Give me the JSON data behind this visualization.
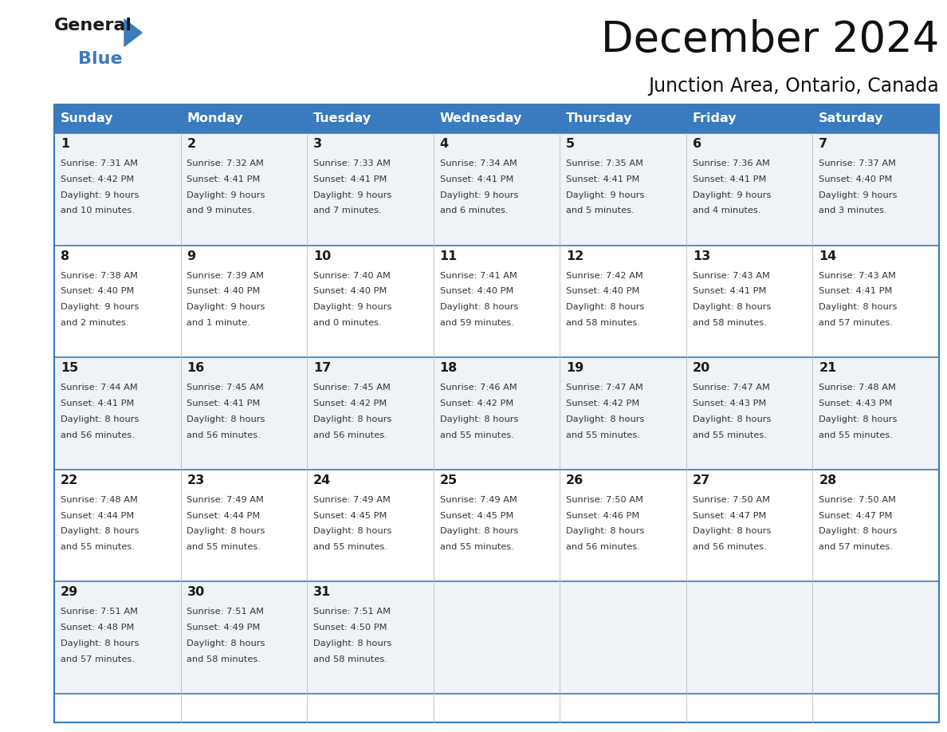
{
  "title": "December 2024",
  "subtitle": "Junction Area, Ontario, Canada",
  "header_color": "#3a7abf",
  "header_text_color": "#ffffff",
  "border_color": "#3a7abf",
  "day_headers": [
    "Sunday",
    "Monday",
    "Tuesday",
    "Wednesday",
    "Thursday",
    "Friday",
    "Saturday"
  ],
  "days": [
    {
      "day": 1,
      "col": 0,
      "row": 0,
      "sunrise": "7:31 AM",
      "sunset": "4:42 PM",
      "daylight": "9 hours",
      "daylight2": "and 10 minutes."
    },
    {
      "day": 2,
      "col": 1,
      "row": 0,
      "sunrise": "7:32 AM",
      "sunset": "4:41 PM",
      "daylight": "9 hours",
      "daylight2": "and 9 minutes."
    },
    {
      "day": 3,
      "col": 2,
      "row": 0,
      "sunrise": "7:33 AM",
      "sunset": "4:41 PM",
      "daylight": "9 hours",
      "daylight2": "and 7 minutes."
    },
    {
      "day": 4,
      "col": 3,
      "row": 0,
      "sunrise": "7:34 AM",
      "sunset": "4:41 PM",
      "daylight": "9 hours",
      "daylight2": "and 6 minutes."
    },
    {
      "day": 5,
      "col": 4,
      "row": 0,
      "sunrise": "7:35 AM",
      "sunset": "4:41 PM",
      "daylight": "9 hours",
      "daylight2": "and 5 minutes."
    },
    {
      "day": 6,
      "col": 5,
      "row": 0,
      "sunrise": "7:36 AM",
      "sunset": "4:41 PM",
      "daylight": "9 hours",
      "daylight2": "and 4 minutes."
    },
    {
      "day": 7,
      "col": 6,
      "row": 0,
      "sunrise": "7:37 AM",
      "sunset": "4:40 PM",
      "daylight": "9 hours",
      "daylight2": "and 3 minutes."
    },
    {
      "day": 8,
      "col": 0,
      "row": 1,
      "sunrise": "7:38 AM",
      "sunset": "4:40 PM",
      "daylight": "9 hours",
      "daylight2": "and 2 minutes."
    },
    {
      "day": 9,
      "col": 1,
      "row": 1,
      "sunrise": "7:39 AM",
      "sunset": "4:40 PM",
      "daylight": "9 hours",
      "daylight2": "and 1 minute."
    },
    {
      "day": 10,
      "col": 2,
      "row": 1,
      "sunrise": "7:40 AM",
      "sunset": "4:40 PM",
      "daylight": "9 hours",
      "daylight2": "and 0 minutes."
    },
    {
      "day": 11,
      "col": 3,
      "row": 1,
      "sunrise": "7:41 AM",
      "sunset": "4:40 PM",
      "daylight": "8 hours",
      "daylight2": "and 59 minutes."
    },
    {
      "day": 12,
      "col": 4,
      "row": 1,
      "sunrise": "7:42 AM",
      "sunset": "4:40 PM",
      "daylight": "8 hours",
      "daylight2": "and 58 minutes."
    },
    {
      "day": 13,
      "col": 5,
      "row": 1,
      "sunrise": "7:43 AM",
      "sunset": "4:41 PM",
      "daylight": "8 hours",
      "daylight2": "and 58 minutes."
    },
    {
      "day": 14,
      "col": 6,
      "row": 1,
      "sunrise": "7:43 AM",
      "sunset": "4:41 PM",
      "daylight": "8 hours",
      "daylight2": "and 57 minutes."
    },
    {
      "day": 15,
      "col": 0,
      "row": 2,
      "sunrise": "7:44 AM",
      "sunset": "4:41 PM",
      "daylight": "8 hours",
      "daylight2": "and 56 minutes."
    },
    {
      "day": 16,
      "col": 1,
      "row": 2,
      "sunrise": "7:45 AM",
      "sunset": "4:41 PM",
      "daylight": "8 hours",
      "daylight2": "and 56 minutes."
    },
    {
      "day": 17,
      "col": 2,
      "row": 2,
      "sunrise": "7:45 AM",
      "sunset": "4:42 PM",
      "daylight": "8 hours",
      "daylight2": "and 56 minutes."
    },
    {
      "day": 18,
      "col": 3,
      "row": 2,
      "sunrise": "7:46 AM",
      "sunset": "4:42 PM",
      "daylight": "8 hours",
      "daylight2": "and 55 minutes."
    },
    {
      "day": 19,
      "col": 4,
      "row": 2,
      "sunrise": "7:47 AM",
      "sunset": "4:42 PM",
      "daylight": "8 hours",
      "daylight2": "and 55 minutes."
    },
    {
      "day": 20,
      "col": 5,
      "row": 2,
      "sunrise": "7:47 AM",
      "sunset": "4:43 PM",
      "daylight": "8 hours",
      "daylight2": "and 55 minutes."
    },
    {
      "day": 21,
      "col": 6,
      "row": 2,
      "sunrise": "7:48 AM",
      "sunset": "4:43 PM",
      "daylight": "8 hours",
      "daylight2": "and 55 minutes."
    },
    {
      "day": 22,
      "col": 0,
      "row": 3,
      "sunrise": "7:48 AM",
      "sunset": "4:44 PM",
      "daylight": "8 hours",
      "daylight2": "and 55 minutes."
    },
    {
      "day": 23,
      "col": 1,
      "row": 3,
      "sunrise": "7:49 AM",
      "sunset": "4:44 PM",
      "daylight": "8 hours",
      "daylight2": "and 55 minutes."
    },
    {
      "day": 24,
      "col": 2,
      "row": 3,
      "sunrise": "7:49 AM",
      "sunset": "4:45 PM",
      "daylight": "8 hours",
      "daylight2": "and 55 minutes."
    },
    {
      "day": 25,
      "col": 3,
      "row": 3,
      "sunrise": "7:49 AM",
      "sunset": "4:45 PM",
      "daylight": "8 hours",
      "daylight2": "and 55 minutes."
    },
    {
      "day": 26,
      "col": 4,
      "row": 3,
      "sunrise": "7:50 AM",
      "sunset": "4:46 PM",
      "daylight": "8 hours",
      "daylight2": "and 56 minutes."
    },
    {
      "day": 27,
      "col": 5,
      "row": 3,
      "sunrise": "7:50 AM",
      "sunset": "4:47 PM",
      "daylight": "8 hours",
      "daylight2": "and 56 minutes."
    },
    {
      "day": 28,
      "col": 6,
      "row": 3,
      "sunrise": "7:50 AM",
      "sunset": "4:47 PM",
      "daylight": "8 hours",
      "daylight2": "and 57 minutes."
    },
    {
      "day": 29,
      "col": 0,
      "row": 4,
      "sunrise": "7:51 AM",
      "sunset": "4:48 PM",
      "daylight": "8 hours",
      "daylight2": "and 57 minutes."
    },
    {
      "day": 30,
      "col": 1,
      "row": 4,
      "sunrise": "7:51 AM",
      "sunset": "4:49 PM",
      "daylight": "8 hours",
      "daylight2": "and 58 minutes."
    },
    {
      "day": 31,
      "col": 2,
      "row": 4,
      "sunrise": "7:51 AM",
      "sunset": "4:50 PM",
      "daylight": "8 hours",
      "daylight2": "and 58 minutes."
    }
  ],
  "logo_color1": "#1a1a1a",
  "logo_color2": "#3a7abf",
  "logo_triangle_color": "#3a7abf",
  "fig_width": 11.88,
  "fig_height": 9.18,
  "dpi": 100
}
